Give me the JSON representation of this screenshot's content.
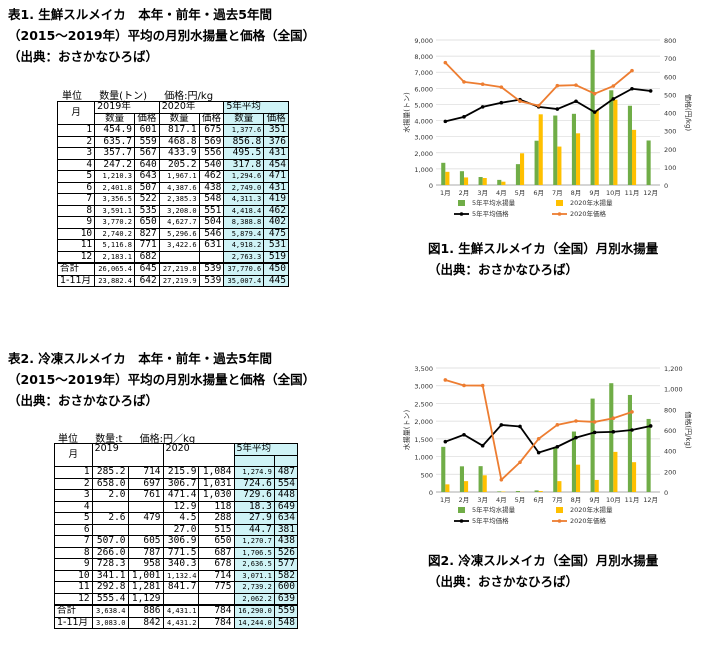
{
  "table1": {
    "caption": [
      "表1. 生鮮スルメイカ　本年・前年・過去5年間",
      "（2015～2019年）平均の月別水揚量と価格（全国）",
      "（出典：おさかなひろば）"
    ],
    "units": [
      "単位",
      "数量(トン)",
      "価格:円/kg"
    ],
    "header_month": "月",
    "header_years": [
      "2019年",
      "2020年",
      "5年平均"
    ],
    "header_cols": [
      "数量",
      "価格",
      "数量",
      "価格",
      "数量",
      "価格"
    ],
    "rows": [
      [
        "1",
        "454.9",
        "601",
        "817.1",
        "675",
        "1,377.6",
        "351"
      ],
      [
        "2",
        "635.7",
        "559",
        "468.8",
        "569",
        "856.8",
        "376"
      ],
      [
        "3",
        "357.7",
        "567",
        "433.9",
        "556",
        "495.5",
        "431"
      ],
      [
        "4",
        "247.2",
        "640",
        "205.2",
        "540",
        "317.8",
        "454"
      ],
      [
        "5",
        "1,210.3",
        "643",
        "1,967.1",
        "462",
        "1,294.6",
        "471"
      ],
      [
        "6",
        "2,401.8",
        "507",
        "4,387.6",
        "438",
        "2,749.0",
        "431"
      ],
      [
        "7",
        "3,356.5",
        "522",
        "2,385.3",
        "548",
        "4,311.3",
        "419"
      ],
      [
        "8",
        "3,591.1",
        "535",
        "3,208.0",
        "551",
        "4,418.4",
        "462"
      ],
      [
        "9",
        "3,770.2",
        "650",
        "4,627.7",
        "504",
        "8,388.8",
        "402"
      ],
      [
        "10",
        "2,740.2",
        "827",
        "5,296.6",
        "546",
        "5,879.4",
        "475"
      ],
      [
        "11",
        "5,116.8",
        "771",
        "3,422.6",
        "631",
        "4,918.2",
        "531"
      ],
      [
        "12",
        "2,183.1",
        "682",
        "",
        "",
        "2,763.3",
        "519"
      ]
    ],
    "totals": [
      [
        "合計",
        "26,065.4",
        "645",
        "27,219.8",
        "539",
        "37,770.6",
        "450"
      ],
      [
        "1-11月",
        "23,882.4",
        "642",
        "27,219.9",
        "539",
        "35,007.4",
        "445"
      ]
    ]
  },
  "table2": {
    "caption": [
      "表2. 冷凍スルメイカ　本年・前年・過去5年間",
      "（2015～2019年）平均の月別水揚量と価格（全国）",
      "（出典：おさかなひろば）"
    ],
    "units": [
      "単位",
      "数量:t",
      "価格:円／kg"
    ],
    "header_month": "月",
    "header_years": [
      "2019",
      "2020",
      "5年平均"
    ],
    "rows": [
      [
        "1",
        "285.2",
        "714",
        "215.9",
        "1,084",
        "1,274.9",
        "487"
      ],
      [
        "2",
        "658.0",
        "697",
        "306.7",
        "1,031",
        "724.6",
        "554"
      ],
      [
        "3",
        "2.0",
        "761",
        "471.4",
        "1,030",
        "729.6",
        "448"
      ],
      [
        "4",
        "",
        "",
        "12.9",
        "118",
        "18.3",
        "649"
      ],
      [
        "5",
        "2.6",
        "479",
        "4.5",
        "288",
        "27.9",
        "634"
      ],
      [
        "6",
        "",
        "",
        "27.0",
        "515",
        "44.7",
        "381"
      ],
      [
        "7",
        "507.0",
        "605",
        "306.9",
        "650",
        "1,270.7",
        "438"
      ],
      [
        "8",
        "266.0",
        "787",
        "771.5",
        "687",
        "1,706.5",
        "526"
      ],
      [
        "9",
        "728.3",
        "958",
        "340.3",
        "678",
        "2,636.5",
        "577"
      ],
      [
        "10",
        "341.1",
        "1,001",
        "1,132.4",
        "714",
        "3,071.1",
        "582"
      ],
      [
        "11",
        "292.8",
        "1,281",
        "841.7",
        "775",
        "2,739.2",
        "600"
      ],
      [
        "12",
        "555.4",
        "1,129",
        "",
        "",
        "2,062.2",
        "639"
      ]
    ],
    "totals": [
      [
        "合計",
        "3,638.4",
        "886",
        "4,431.1",
        "784",
        "16,290.0",
        "559"
      ],
      [
        "1-11月",
        "3,083.0",
        "842",
        "4,431.2",
        "784",
        "14,244.0",
        "548"
      ]
    ]
  },
  "figure1": {
    "caption": [
      "図1. 生鮮スルメイカ（全国）月別水揚量",
      "（出典：おさかなひろば）"
    ]
  },
  "figure2": {
    "caption": [
      "図2. 冷凍スルメイカ（全国）月別水揚量",
      "（出典：おさかなひろば）"
    ]
  },
  "chart_data": [
    {
      "type": "bar",
      "categories": [
        "1月",
        "2月",
        "3月",
        "4月",
        "5月",
        "6月",
        "7月",
        "8月",
        "9月",
        "10月",
        "11月",
        "12月"
      ],
      "ylabel": "水揚量(トン)",
      "ylabel2": "価格(円/kg)",
      "ylim": [
        0,
        9000
      ],
      "ylim2": [
        0,
        800
      ],
      "yticks": [
        "0",
        "1,000",
        "2,000",
        "3,000",
        "4,000",
        "5,000",
        "6,000",
        "7,000",
        "8,000",
        "9,000"
      ],
      "yticks2": [
        "0",
        "100",
        "200",
        "300",
        "400",
        "500",
        "600",
        "700",
        "800"
      ],
      "grid": true,
      "legend": "bottom",
      "series": [
        {
          "name": "5年平均水揚量",
          "kind": "bar",
          "axis": "left",
          "color": "#70ad47",
          "values": [
            1377.6,
            856.8,
            495.5,
            317.8,
            1294.6,
            2749.0,
            4311.3,
            4418.4,
            8388.8,
            5879.4,
            4918.2,
            2763.3
          ]
        },
        {
          "name": "2020年水揚量",
          "kind": "bar",
          "axis": "left",
          "color": "#ffc000",
          "values": [
            817.1,
            468.8,
            433.9,
            205.2,
            1967.1,
            4387.6,
            2385.3,
            3208.0,
            4627.7,
            5296.6,
            3422.6,
            null
          ]
        },
        {
          "name": "5年平均価格",
          "kind": "line",
          "axis": "right",
          "color": "#000000",
          "values": [
            351,
            376,
            431,
            454,
            471,
            431,
            419,
            462,
            402,
            475,
            531,
            519
          ]
        },
        {
          "name": "2020年価格",
          "kind": "line",
          "axis": "right",
          "color": "#ed7d31",
          "values": [
            675,
            569,
            556,
            540,
            462,
            438,
            548,
            551,
            504,
            546,
            631,
            null
          ]
        }
      ]
    },
    {
      "type": "bar",
      "categories": [
        "1月",
        "2月",
        "3月",
        "4月",
        "5月",
        "6月",
        "7月",
        "8月",
        "9月",
        "10月",
        "11月",
        "12月"
      ],
      "ylabel": "水揚量(トン)",
      "ylabel2": "価格(円/kg)",
      "ylim": [
        0,
        3500
      ],
      "ylim2": [
        0,
        1200
      ],
      "yticks": [
        "0",
        "500",
        "1,000",
        "1,500",
        "2,000",
        "2,500",
        "3,000",
        "3,500"
      ],
      "yticks2": [
        "0",
        "200",
        "400",
        "600",
        "800",
        "1,000",
        "1,200"
      ],
      "grid": true,
      "legend": "bottom",
      "series": [
        {
          "name": "5年平均水揚量",
          "kind": "bar",
          "axis": "left",
          "color": "#70ad47",
          "values": [
            1274.9,
            724.6,
            729.6,
            18.3,
            27.9,
            44.7,
            1270.7,
            1706.5,
            2636.5,
            3071.1,
            2739.2,
            2062.2
          ]
        },
        {
          "name": "2020年水揚量",
          "kind": "bar",
          "axis": "left",
          "color": "#ffc000",
          "values": [
            215.9,
            306.7,
            471.4,
            12.9,
            4.5,
            27.0,
            306.9,
            771.5,
            340.3,
            1132.4,
            841.7,
            null
          ]
        },
        {
          "name": "5年平均価格",
          "kind": "line",
          "axis": "right",
          "color": "#000000",
          "values": [
            487,
            554,
            448,
            649,
            634,
            381,
            438,
            526,
            577,
            582,
            600,
            639
          ]
        },
        {
          "name": "2020年価格",
          "kind": "line",
          "axis": "right",
          "color": "#ed7d31",
          "values": [
            1084,
            1031,
            1030,
            118,
            288,
            515,
            650,
            687,
            678,
            714,
            775,
            null
          ]
        }
      ]
    }
  ]
}
